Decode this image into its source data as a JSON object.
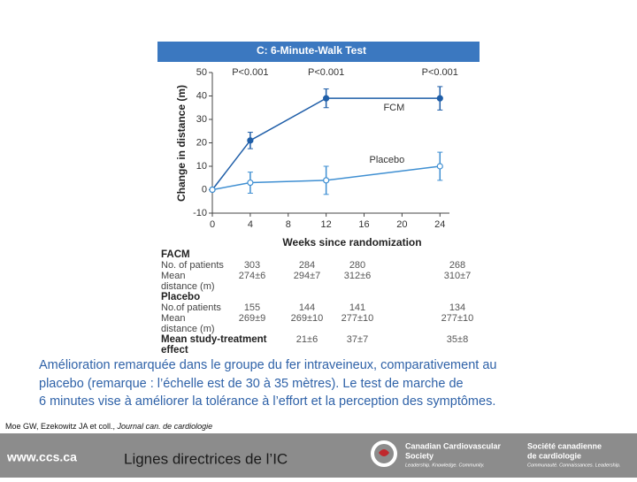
{
  "chart_data": {
    "type": "line",
    "title": "C: 6-Minute-Walk Test",
    "x_label": "Weeks since randomization",
    "y_label": "Change in distance (m)",
    "x": [
      0,
      4,
      12,
      24
    ],
    "series": [
      {
        "name": "FCM",
        "color": "#1f5ea8",
        "marker": "filled",
        "values": [
          0,
          21,
          39,
          39
        ],
        "errors": [
          0,
          3.5,
          4,
          5
        ]
      },
      {
        "name": "Placebo",
        "color": "#3f8fd2",
        "marker": "hollow",
        "values": [
          0,
          3,
          4,
          10
        ],
        "errors": [
          0,
          4.5,
          6,
          6
        ]
      }
    ],
    "annotations": [
      {
        "text": "P<0.001",
        "x": 4
      },
      {
        "text": "P<0.001",
        "x": 12
      },
      {
        "text": "P<0.001",
        "x": 24
      }
    ],
    "xlim": [
      0,
      25
    ],
    "ylim": [
      -10,
      50
    ],
    "xticks": [
      0,
      4,
      8,
      12,
      16,
      20,
      24
    ],
    "yticks": [
      -10,
      0,
      10,
      20,
      30,
      40,
      50
    ]
  },
  "table": {
    "groups": [
      {
        "name": "FACM",
        "rows": [
          {
            "label": [
              "No. of patients"
            ],
            "cells": [
              303,
              284,
              280,
              268
            ]
          },
          {
            "label": [
              "Mean",
              "distance (m)"
            ],
            "cells": [
              "274±6",
              "294±7",
              "312±6",
              "310±7"
            ]
          }
        ]
      },
      {
        "name": "Placebo",
        "rows": [
          {
            "label": [
              "No.of patients"
            ],
            "cells": [
              155,
              144,
              141,
              134
            ]
          },
          {
            "label": [
              "Mean",
              "distance (m)"
            ],
            "cells": [
              "269±9",
              "269±10",
              "277±10",
              "277±10"
            ]
          }
        ]
      }
    ],
    "effect": {
      "label": [
        "Mean study-treatment",
        "effect"
      ],
      "cells": [
        "21±6",
        "37±7",
        "35±8"
      ]
    }
  },
  "caption": [
    "Amélioration remarquée dans le groupe du fer intraveineux, comparativement au",
    "placebo (remarque : l’échelle est de 30 à 35 mètres). Le test de marche de",
    "6 minutes vise à améliorer la tolérance à l’effort et la perception des symptômes."
  ],
  "citation": {
    "authors": "Moe GW, Ezekowitz JA et coll., ",
    "journal": "Journal can. de cardiologie"
  },
  "footer": {
    "url": "www.ccs.ca",
    "title": "Lignes directrices de l’IC",
    "logo_en": [
      "Canadian Cardiovascular",
      "Society",
      "Leadership. Knowledge. Community."
    ],
    "logo_fr": [
      "Société canadienne",
      "de cardiologie",
      "Communauté. Connaissances. Leadership."
    ]
  }
}
